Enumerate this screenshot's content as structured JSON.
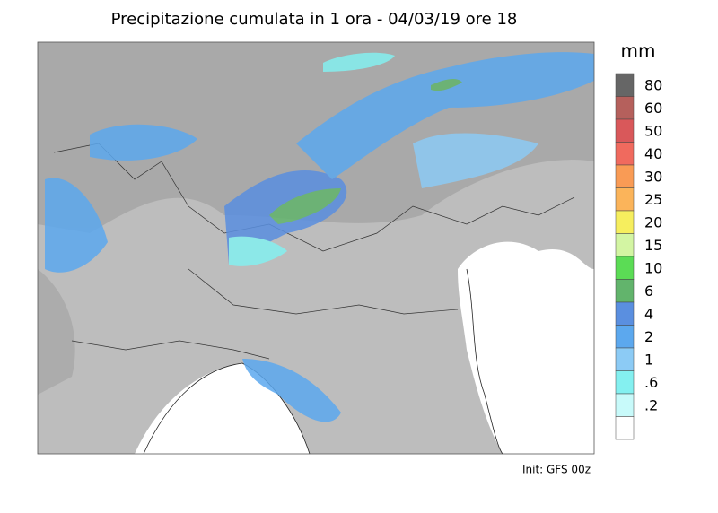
{
  "header": {
    "title": "Precipitazione cumulata in 1 ora - 04/03/19 ore 18"
  },
  "legend": {
    "unit": "mm",
    "items": [
      {
        "label": "80",
        "color": "#666666"
      },
      {
        "label": "60",
        "color": "#b5605c"
      },
      {
        "label": "50",
        "color": "#d9585a"
      },
      {
        "label": "40",
        "color": "#f06a5e"
      },
      {
        "label": "30",
        "color": "#f99b55"
      },
      {
        "label": "25",
        "color": "#fbb45a"
      },
      {
        "label": "20",
        "color": "#f6ee5e"
      },
      {
        "label": "15",
        "color": "#d3f5a3"
      },
      {
        "label": "10",
        "color": "#5bdc55"
      },
      {
        "label": "6",
        "color": "#62b46c"
      },
      {
        "label": "4",
        "color": "#5a8fe0"
      },
      {
        "label": "2",
        "color": "#5ca8ee"
      },
      {
        "label": "1",
        "color": "#8ccbf5"
      },
      {
        "label": ".6",
        "color": "#84f0f0"
      },
      {
        "label": ".2",
        "color": "#c8fafa"
      }
    ]
  },
  "footer": {
    "note": "Init: GFS 00z"
  }
}
